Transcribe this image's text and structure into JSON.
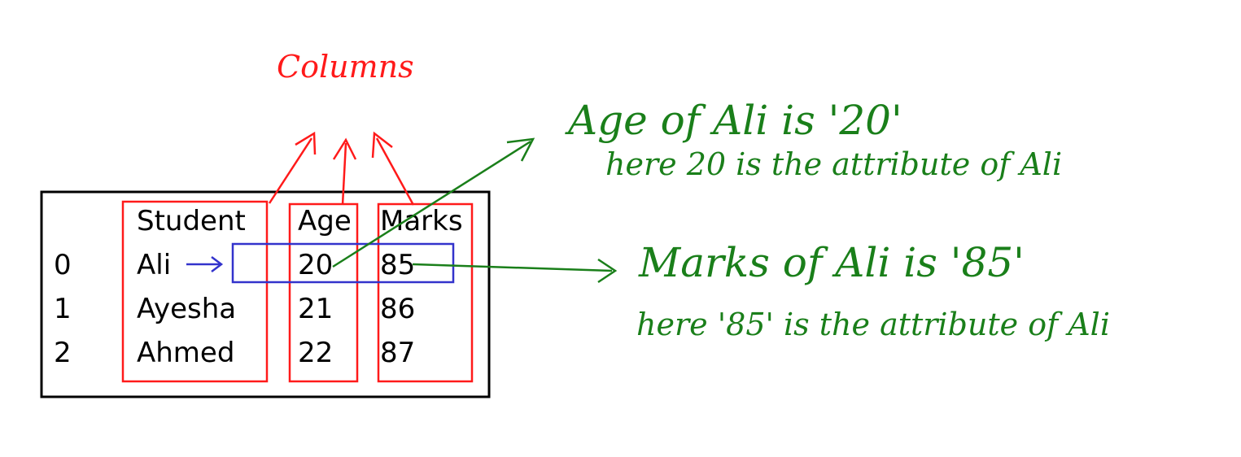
{
  "table": {
    "headers": {
      "student": "Student",
      "age": "Age",
      "marks": "Marks"
    },
    "rows": [
      {
        "index": "0",
        "student": "Ali",
        "age": "20",
        "marks": "85"
      },
      {
        "index": "1",
        "student": "Ayesha",
        "age": "21",
        "marks": "86"
      },
      {
        "index": "2",
        "student": "Ahmed",
        "age": "22",
        "marks": "87"
      }
    ]
  },
  "annotations": {
    "columns_label": "Columns",
    "age_note": {
      "title": "Age of Ali is '20'",
      "detail": "here 20 is the attribute of Ali"
    },
    "marks_note": {
      "title": "Marks of Ali is '85'",
      "detail": "here '85' is the attribute of Ali"
    }
  },
  "colors": {
    "table_text": "#000000",
    "column_highlight": "#ff1a1a",
    "row_highlight": "#3333cc",
    "note_ink": "#1a7f1a"
  }
}
